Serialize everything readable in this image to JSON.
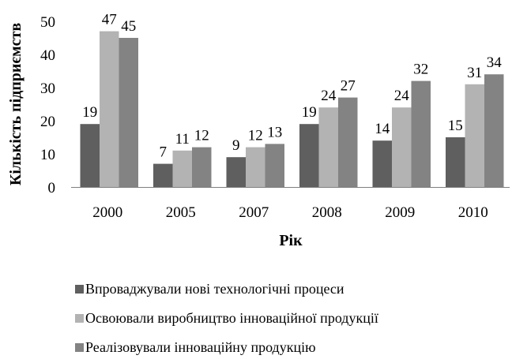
{
  "chart_data": {
    "type": "bar",
    "title": "",
    "xlabel": "Рік",
    "ylabel": "Кількість підприємств",
    "categories": [
      "2000",
      "2005",
      "2007",
      "2008",
      "2009",
      "2010"
    ],
    "ylim": [
      0,
      50
    ],
    "yticks": [
      0,
      10,
      20,
      30,
      40,
      50
    ],
    "grid": false,
    "legend_position": "bottom",
    "series": [
      {
        "name": "Впроваджували нові технологічні процеси",
        "values": [
          19,
          7,
          9,
          19,
          14,
          15
        ],
        "color": "#5f5f5f"
      },
      {
        "name": "Освоювали виробництво інноваційної продукції",
        "values": [
          47,
          11,
          12,
          24,
          24,
          31
        ],
        "color": "#b3b3b3"
      },
      {
        "name": "Реалізовували інноваційну продукцію",
        "values": [
          45,
          12,
          13,
          27,
          32,
          34
        ],
        "color": "#838383"
      }
    ]
  }
}
